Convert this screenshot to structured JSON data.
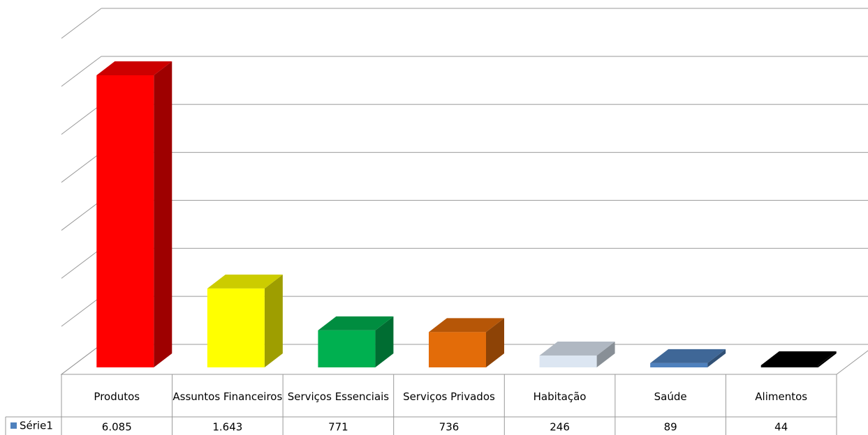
{
  "chart_data": {
    "type": "bar3d",
    "categories": [
      "Produtos",
      "Assuntos Financeiros",
      "Serviços Essenciais",
      "Serviços Privados",
      "Habitação",
      "Saúde",
      "Alimentos"
    ],
    "series": [
      {
        "name": "Série1",
        "color": "#4f81bd",
        "values": [
          6085,
          1643,
          771,
          736,
          246,
          89,
          44
        ],
        "value_labels": [
          "6.085",
          "1.643",
          "771",
          "736",
          "246",
          "89",
          "44"
        ],
        "colors": [
          "#ff0000",
          "#ffff00",
          "#00b050",
          "#e36c09",
          "#dce6f2",
          "#4f81bd",
          "#000000"
        ]
      }
    ],
    "ylim": [
      0,
      7000
    ],
    "yticks": [
      0,
      1000,
      2000,
      3000,
      4000,
      5000,
      6000,
      7000
    ],
    "grid": true
  }
}
